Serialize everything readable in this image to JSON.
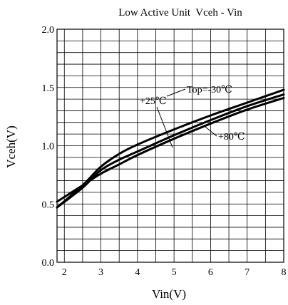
{
  "chart_data": {
    "type": "line",
    "title": "Low Active Unit  Vceh - Vin",
    "xlabel": "Vin(V)",
    "ylabel": "Vceh(V)",
    "xlim": [
      1.8,
      8
    ],
    "ylim": [
      0,
      2.0
    ],
    "x_ticks": [
      "2",
      "3",
      "4",
      "5",
      "6",
      "7",
      "8"
    ],
    "y_ticks": [
      "0.0",
      "0.5",
      "1.0",
      "1.5",
      "2.0"
    ],
    "grid": true,
    "series": [
      {
        "name": "Top=-30℃",
        "x": [
          1.8,
          2.5,
          3.0,
          3.5,
          4.0,
          5.0,
          6.0,
          7.0,
          8.0
        ],
        "y": [
          0.47,
          0.66,
          0.82,
          0.93,
          1.01,
          1.14,
          1.26,
          1.37,
          1.48
        ]
      },
      {
        "name": "+25℃",
        "x": [
          1.8,
          2.5,
          3.0,
          3.5,
          4.0,
          5.0,
          6.0,
          7.0,
          8.0
        ],
        "y": [
          0.47,
          0.64,
          0.79,
          0.88,
          0.95,
          1.09,
          1.22,
          1.34,
          1.44
        ]
      },
      {
        "name": "+80℃",
        "x": [
          1.8,
          2.5,
          3.0,
          3.5,
          4.0,
          5.0,
          6.0,
          7.0,
          8.0
        ],
        "y": [
          0.52,
          0.66,
          0.76,
          0.84,
          0.92,
          1.06,
          1.19,
          1.31,
          1.41
        ]
      }
    ]
  }
}
